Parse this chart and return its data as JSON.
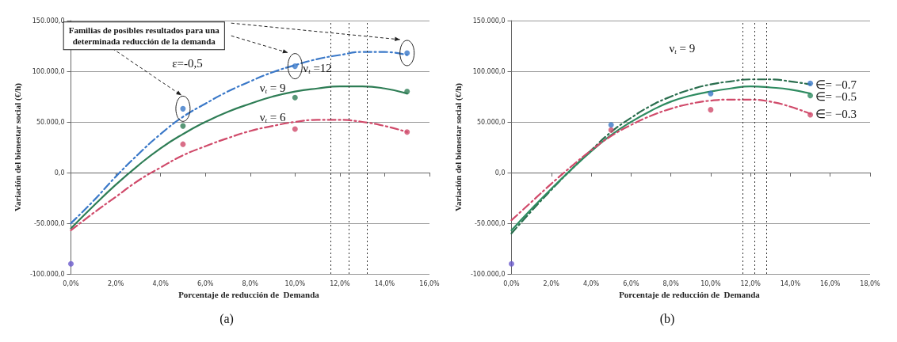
{
  "chart_data": [
    {
      "type": "line",
      "xlabel": "Porcentaje de reducción de  Demanda",
      "ylabel": "Variación del bienestar social (€/h)",
      "x": [
        0,
        1,
        2,
        3,
        4,
        5,
        6,
        7,
        8,
        9,
        10,
        11,
        12,
        13,
        14,
        15
      ],
      "series": [
        {
          "name": "ν$_{t}$ =12",
          "color": "#3a78c8",
          "line_style": "dashed",
          "marker": "none",
          "values": [
            -50000,
            -28000,
            -4000,
            18000,
            38000,
            55000,
            68000,
            80000,
            90000,
            99000,
            106000,
            112000,
            116000,
            119000,
            119000,
            116000
          ]
        },
        {
          "name": "ν$_{t}$ = 9",
          "color": "#2e7d55",
          "line_style": "solid",
          "marker": "none",
          "values": [
            -55000,
            -33000,
            -12000,
            7000,
            24000,
            38000,
            50000,
            60000,
            68000,
            75000,
            80000,
            83000,
            85000,
            85000,
            83000,
            78000
          ]
        },
        {
          "name": "ν$_{t}$ = 6",
          "color": "#d04a6a",
          "line_style": "dashed",
          "marker": "none",
          "values": [
            -57000,
            -40000,
            -24000,
            -8000,
            5000,
            17000,
            26000,
            34000,
            41000,
            46000,
            50000,
            52000,
            52000,
            50000,
            46000,
            40000
          ]
        },
        {
          "type": "scatter",
          "color": "#3a78c8",
          "marker": "circle",
          "x": [
            5,
            10,
            15
          ],
          "values": [
            63000,
            105000,
            118000
          ]
        },
        {
          "type": "scatter",
          "color": "#2e7d55",
          "marker": "circle",
          "x": [
            5,
            10,
            15
          ],
          "values": [
            46000,
            74000,
            80000
          ]
        },
        {
          "type": "scatter",
          "color": "#d04a6a",
          "marker": "circle",
          "x": [
            5,
            10,
            15
          ],
          "values": [
            28000,
            43000,
            40000
          ]
        },
        {
          "type": "scatter",
          "color": "#6a5acd",
          "marker": "circle",
          "x": [
            0
          ],
          "values": [
            -90000
          ]
        }
      ],
      "xlim": [
        0,
        16
      ],
      "xticks": [
        {
          "value": 0,
          "label": "0,0%"
        },
        {
          "value": 2,
          "label": "2,0%"
        },
        {
          "value": 4,
          "label": "4,0%"
        },
        {
          "value": 6,
          "label": "6,0%"
        },
        {
          "value": 8,
          "label": "8,0%"
        },
        {
          "value": 10,
          "label": "10,0%"
        },
        {
          "value": 12,
          "label": "12,0%"
        },
        {
          "value": 14,
          "label": "14,0%"
        },
        {
          "value": 16,
          "label": "16,0%"
        }
      ],
      "ylim": [
        -100000,
        150000
      ],
      "yticks": [
        {
          "value": -100000,
          "label": "-100.000,0"
        },
        {
          "value": -50000,
          "label": "-50.000,0"
        },
        {
          "value": 0,
          "label": "0,0"
        },
        {
          "value": 50000,
          "label": "50.000,0"
        },
        {
          "value": 100000,
          "label": "100.000,0"
        },
        {
          "value": 150000,
          "label": "150.000,0"
        }
      ],
      "grid": "y",
      "legend": false,
      "ref_lines": [
        {
          "axis": "x",
          "value": 11.6,
          "line_style": "dotted",
          "color": "#333333"
        },
        {
          "axis": "x",
          "value": 12.4,
          "line_style": "dotted",
          "color": "#333333"
        },
        {
          "axis": "x",
          "value": 13.2,
          "line_style": "dotted",
          "color": "#333333"
        }
      ],
      "annotations": [
        "Familias de posibles resultados para una\ndeterminada reducción de la demanda",
        "ε=-0,5",
        "(a)"
      ]
    },
    {
      "type": "line",
      "xlabel": "Porcentaje de reducción de  Demanda",
      "ylabel": "Variación del bienestar social (€/h)",
      "x": [
        0,
        1,
        2,
        3,
        4,
        5,
        6,
        7,
        8,
        9,
        10,
        11,
        12,
        13,
        14,
        15
      ],
      "series": [
        {
          "name": "∈= −0.7",
          "color": "#2a6e4e",
          "line_style": "dashed",
          "marker": "none",
          "values": [
            -60000,
            -38000,
            -17000,
            3000,
            22000,
            40000,
            54000,
            66000,
            75000,
            82000,
            87000,
            90000,
            92000,
            92000,
            90000,
            87000
          ]
        },
        {
          "name": "∈= −0.5",
          "color": "#2e8b60",
          "line_style": "solid",
          "marker": "none",
          "values": [
            -57000,
            -36000,
            -16000,
            3000,
            21000,
            37000,
            50000,
            61000,
            70000,
            76000,
            80000,
            83000,
            85000,
            84000,
            82000,
            78000
          ]
        },
        {
          "name": "∈= −0.3",
          "color": "#d04a6a",
          "line_style": "dashed",
          "marker": "none",
          "values": [
            -47000,
            -29000,
            -11000,
            6000,
            22000,
            36000,
            47000,
            56000,
            63000,
            68000,
            71000,
            72000,
            72000,
            70000,
            65000,
            58000
          ]
        },
        {
          "type": "scatter",
          "color": "#3a78c8",
          "marker": "circle",
          "x": [
            5,
            10,
            15
          ],
          "values": [
            47000,
            78000,
            88000
          ]
        },
        {
          "type": "scatter",
          "color": "#2e8b60",
          "marker": "circle",
          "x": [
            15
          ],
          "values": [
            76000
          ]
        },
        {
          "type": "scatter",
          "color": "#d04a6a",
          "marker": "circle",
          "x": [
            5,
            10,
            15
          ],
          "values": [
            42000,
            62000,
            57000
          ]
        },
        {
          "type": "scatter",
          "color": "#6a5acd",
          "marker": "circle",
          "x": [
            0
          ],
          "values": [
            -90000
          ]
        }
      ],
      "xlim": [
        0,
        18
      ],
      "xticks": [
        {
          "value": 0,
          "label": "0,0%"
        },
        {
          "value": 2,
          "label": "2,0%"
        },
        {
          "value": 4,
          "label": "4,0%"
        },
        {
          "value": 6,
          "label": "6,0%"
        },
        {
          "value": 8,
          "label": "8,0%"
        },
        {
          "value": 10,
          "label": "10,0%"
        },
        {
          "value": 12,
          "label": "12,0%"
        },
        {
          "value": 14,
          "label": "14,0%"
        },
        {
          "value": 16,
          "label": "16,0%"
        },
        {
          "value": 18,
          "label": "18,0%"
        }
      ],
      "ylim": [
        -100000,
        150000
      ],
      "yticks": [
        {
          "value": -100000,
          "label": "-100.000,0"
        },
        {
          "value": -50000,
          "label": "-50.000,0"
        },
        {
          "value": 0,
          "label": "0,0"
        },
        {
          "value": 50000,
          "label": "50.000,0"
        },
        {
          "value": 100000,
          "label": "100.000,0"
        },
        {
          "value": 150000,
          "label": "150.000,0"
        }
      ],
      "grid": "y",
      "legend": false,
      "ref_lines": [
        {
          "axis": "x",
          "value": 11.6,
          "line_style": "dotted",
          "color": "#333333"
        },
        {
          "axis": "x",
          "value": 12.2,
          "line_style": "dotted",
          "color": "#333333"
        },
        {
          "axis": "x",
          "value": 12.8,
          "line_style": "dotted",
          "color": "#333333"
        }
      ],
      "annotations": [
        "ν$_{t}$ = 9",
        "(b)"
      ]
    }
  ]
}
